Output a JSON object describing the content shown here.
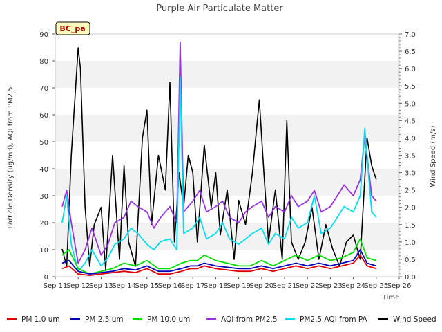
{
  "chart_data": {
    "type": "line",
    "title": "Purple Air Particulate Matter",
    "xlabel": "Time",
    "ylabel": "Particle Density (ug/m3), AQI from PM2.5",
    "y2label": "Wind Speed (m/s)",
    "site_label": "BC_pa",
    "ylim": [
      0,
      90
    ],
    "y2lim": [
      0,
      7
    ],
    "xlim": [
      11,
      26
    ],
    "x_ticks": [
      "Sep 11",
      "Sep 12",
      "Sep 13",
      "Sep 14",
      "Sep 15",
      "Sep 16",
      "Sep 17",
      "Sep 18",
      "Sep 19",
      "Sep 20",
      "Sep 21",
      "Sep 22",
      "Sep 23",
      "Sep 24",
      "Sep 25",
      "Sep 26"
    ],
    "y_ticks": [
      "0",
      "10",
      "20",
      "30",
      "40",
      "50",
      "60",
      "70",
      "80",
      "90"
    ],
    "y2_ticks": [
      "0.0",
      "0.5",
      "1.0",
      "1.5",
      "2.0",
      "2.5",
      "3.0",
      "3.5",
      "4.0",
      "4.5",
      "5.0",
      "5.5",
      "6.0",
      "6.5",
      "7.0"
    ],
    "grid": "horizontal bands",
    "legend_position": "bottom",
    "series": [
      {
        "name": "PM 1.0 um",
        "color": "#dd0000",
        "axis": "left",
        "x": [
          11.3,
          11.6,
          12.0,
          12.5,
          13.0,
          13.5,
          14.0,
          14.5,
          15.0,
          15.5,
          16.0,
          16.5,
          16.9,
          17.2,
          17.5,
          18.0,
          18.5,
          19.0,
          19.5,
          20.0,
          20.5,
          21.0,
          21.5,
          22.0,
          22.5,
          23.0,
          23.5,
          24.0,
          24.3,
          24.6,
          25.0
        ],
        "y": [
          3,
          4,
          1,
          0.5,
          1,
          1.5,
          2,
          1.5,
          3,
          1,
          1,
          2,
          3,
          3,
          4,
          3,
          2.5,
          2,
          2,
          3,
          2,
          3,
          4,
          3,
          4,
          3,
          4,
          5,
          8,
          4,
          3
        ]
      },
      {
        "name": "PM 2.5 um",
        "color": "#0000bb",
        "axis": "left",
        "x": [
          11.3,
          11.6,
          12.0,
          12.5,
          13.0,
          13.5,
          14.0,
          14.5,
          15.0,
          15.5,
          16.0,
          16.5,
          16.9,
          17.2,
          17.5,
          18.0,
          18.5,
          19.0,
          19.5,
          20.0,
          20.5,
          21.0,
          21.5,
          22.0,
          22.5,
          23.0,
          23.5,
          24.0,
          24.3,
          24.6,
          25.0
        ],
        "y": [
          5,
          6,
          2,
          1,
          1.5,
          2,
          3,
          2.5,
          4,
          2,
          2,
          3,
          4,
          4,
          5,
          4,
          3.5,
          3,
          3,
          4,
          3,
          4,
          5,
          4,
          5,
          4,
          5,
          6,
          10,
          5,
          4
        ]
      },
      {
        "name": "PM 10.0 um",
        "color": "#00dd00",
        "axis": "left",
        "x": [
          11.3,
          11.6,
          12.0,
          12.5,
          13.0,
          13.5,
          14.0,
          14.5,
          15.0,
          15.5,
          16.0,
          16.5,
          16.9,
          17.2,
          17.5,
          18.0,
          18.5,
          19.0,
          19.5,
          20.0,
          20.5,
          21.0,
          21.5,
          22.0,
          22.5,
          23.0,
          23.5,
          24.0,
          24.3,
          24.6,
          25.0
        ],
        "y": [
          8,
          10,
          3,
          1,
          2,
          3,
          5,
          4,
          6,
          3,
          3,
          5,
          6,
          6,
          8,
          6,
          5,
          4,
          4,
          6,
          4,
          6,
          8,
          6,
          8,
          6,
          7,
          9,
          14,
          7,
          6
        ]
      },
      {
        "name": "AQI from PM2.5",
        "color": "#9933dd",
        "axis": "left",
        "x": [
          11.3,
          11.5,
          11.7,
          12.0,
          12.3,
          12.6,
          13.0,
          13.3,
          13.6,
          14.0,
          14.3,
          14.6,
          15.0,
          15.3,
          15.6,
          16.0,
          16.3,
          16.45,
          16.6,
          17.0,
          17.3,
          17.6,
          18.0,
          18.3,
          18.6,
          19.0,
          19.3,
          19.6,
          20.0,
          20.3,
          20.6,
          21.0,
          21.3,
          21.6,
          22.0,
          22.3,
          22.6,
          23.0,
          23.3,
          23.6,
          24.0,
          24.3,
          24.5,
          24.8,
          25.0
        ],
        "y": [
          26,
          32,
          20,
          5,
          10,
          18,
          8,
          12,
          20,
          22,
          28,
          26,
          24,
          18,
          22,
          26,
          20,
          87,
          24,
          28,
          32,
          24,
          26,
          28,
          22,
          20,
          24,
          26,
          28,
          22,
          26,
          24,
          30,
          26,
          28,
          32,
          24,
          26,
          30,
          34,
          30,
          36,
          52,
          30,
          28
        ]
      },
      {
        "name": "PM2.5 AQI from PA",
        "color": "#00ddee",
        "axis": "left",
        "x": [
          11.3,
          11.5,
          11.7,
          12.0,
          12.3,
          12.6,
          13.0,
          13.3,
          13.6,
          14.0,
          14.3,
          14.6,
          15.0,
          15.3,
          15.6,
          16.0,
          16.3,
          16.45,
          16.6,
          17.0,
          17.3,
          17.6,
          18.0,
          18.3,
          18.6,
          19.0,
          19.3,
          19.6,
          20.0,
          20.3,
          20.6,
          21.0,
          21.3,
          21.6,
          22.0,
          22.3,
          22.6,
          23.0,
          23.3,
          23.6,
          24.0,
          24.3,
          24.5,
          24.8,
          25.0
        ],
        "y": [
          20,
          30,
          12,
          2,
          5,
          10,
          4,
          7,
          12,
          14,
          18,
          16,
          12,
          10,
          13,
          14,
          10,
          74,
          16,
          18,
          22,
          14,
          16,
          20,
          14,
          12,
          14,
          16,
          18,
          12,
          16,
          14,
          22,
          18,
          20,
          30,
          16,
          18,
          22,
          26,
          24,
          30,
          55,
          24,
          22
        ]
      },
      {
        "name": "Wind Speed",
        "color": "#000000",
        "axis": "right",
        "x": [
          11.3,
          11.5,
          11.7,
          12.0,
          12.1,
          12.3,
          12.5,
          12.7,
          13.0,
          13.2,
          13.5,
          13.8,
          14.0,
          14.2,
          14.5,
          14.8,
          15.0,
          15.2,
          15.5,
          15.8,
          16.0,
          16.2,
          16.4,
          16.6,
          16.8,
          17.0,
          17.2,
          17.5,
          17.8,
          18.0,
          18.2,
          18.5,
          18.8,
          19.0,
          19.3,
          19.6,
          19.9,
          20.1,
          20.3,
          20.6,
          20.9,
          21.1,
          21.3,
          21.6,
          21.9,
          22.2,
          22.5,
          22.8,
          23.1,
          23.4,
          23.7,
          24.0,
          24.3,
          24.6,
          24.8,
          25.0
        ],
        "y": [
          0.8,
          0.3,
          3.5,
          6.6,
          6.0,
          2.0,
          0.3,
          1.5,
          2.0,
          0.2,
          3.5,
          0.5,
          3.2,
          1.0,
          0.3,
          4.0,
          4.8,
          1.5,
          3.5,
          2.5,
          5.6,
          1.0,
          3.0,
          2.0,
          3.5,
          3.0,
          1.0,
          3.8,
          2.0,
          3.0,
          1.2,
          2.5,
          0.5,
          2.2,
          1.5,
          3.0,
          5.1,
          3.0,
          1.0,
          2.5,
          0.5,
          4.5,
          1.0,
          0.5,
          1.0,
          2.0,
          0.5,
          1.5,
          0.8,
          0.3,
          1.0,
          1.2,
          0.5,
          4.0,
          3.2,
          2.8
        ]
      }
    ]
  }
}
